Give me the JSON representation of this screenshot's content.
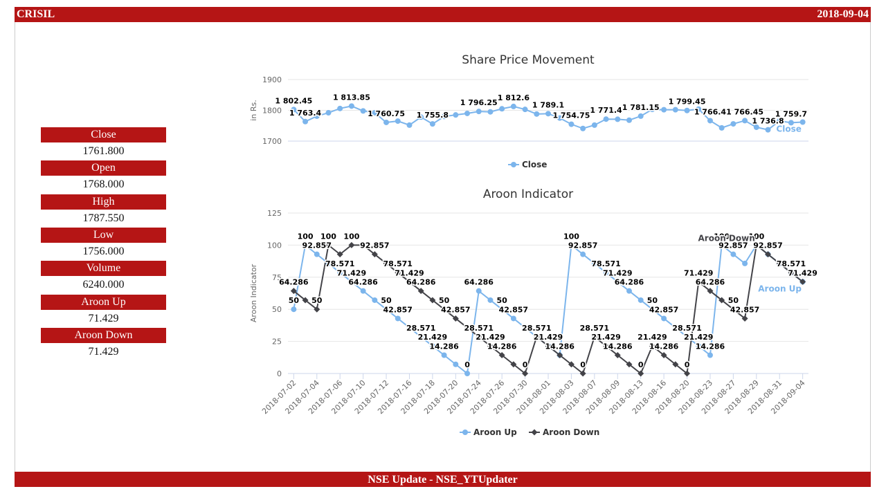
{
  "header": {
    "title": "CRISIL",
    "date": "2018-09-04"
  },
  "sidebar": {
    "items": [
      {
        "label": "Close",
        "value": "1761.800"
      },
      {
        "label": "Open",
        "value": "1768.000"
      },
      {
        "label": "High",
        "value": "1787.550"
      },
      {
        "label": "Low",
        "value": "1756.000"
      },
      {
        "label": "Volume",
        "value": "6240.000"
      },
      {
        "label": "Aroon Up",
        "value": "71.429"
      },
      {
        "label": "Aroon Down",
        "value": "71.429"
      }
    ]
  },
  "chart_data": [
    {
      "type": "line",
      "title": "Share Price Movement",
      "y_label": "in Rs.",
      "ylim": [
        1700,
        1900
      ],
      "yticks": [
        1700,
        1800,
        1900
      ],
      "grid": true,
      "categories": [
        null,
        null,
        null,
        null,
        null,
        null,
        null,
        null,
        null,
        null,
        null,
        null,
        null,
        null,
        null,
        null,
        null,
        null,
        null,
        null,
        null,
        null,
        null,
        null,
        null,
        null,
        null,
        null,
        null,
        null,
        null,
        null,
        null,
        null,
        null,
        null,
        null,
        null,
        null,
        null,
        null,
        null,
        null,
        null,
        null
      ],
      "series": [
        {
          "name": "Close",
          "color": "#7cb5ec",
          "marker": "circle",
          "values": [
            1802.45,
            1763.4,
            1781,
            1792,
            1806,
            1813.85,
            1798,
            1792,
            1760.75,
            1765,
            1752,
            1778,
            1755.8,
            1780,
            1785,
            1790,
            1796.25,
            1795,
            1805,
            1812.6,
            1803,
            1788,
            1789.1,
            1775,
            1754.75,
            1741,
            1752,
            1771.4,
            1771,
            1768,
            1781.15,
            1803,
            1802,
            1802,
            1799.45,
            1804,
            1766.4,
            1743,
            1756,
            1766.45,
            1745,
            1736.8,
            1766,
            1759.7,
            1761.8
          ],
          "value_labels": [
            "1 802.45",
            "1 763.4",
            null,
            null,
            null,
            "1 813.85",
            null,
            null,
            "1 760.75",
            null,
            null,
            null,
            "1 755.8",
            null,
            null,
            null,
            "1 796.25",
            null,
            null,
            "1 812.6",
            null,
            null,
            "1 789.1",
            null,
            "1 754.75",
            null,
            null,
            "1 771.4",
            null,
            null,
            "1 781.15",
            null,
            null,
            null,
            "1 799.45",
            null,
            "1 766.4",
            null,
            null,
            "1 766.45",
            null,
            "1 736.8",
            null,
            "1 759.7",
            null
          ]
        }
      ]
    },
    {
      "type": "line",
      "title": "Aroon Indicator",
      "y_label": "Aroon Indicator",
      "ylim": [
        0,
        125
      ],
      "yticks": [
        0,
        25,
        50,
        75,
        100,
        125
      ],
      "grid": true,
      "categories": [
        "2018-07-02",
        null,
        "2018-07-04",
        null,
        "2018-07-06",
        null,
        "2018-07-10",
        null,
        "2018-07-12",
        null,
        "2018-07-16",
        null,
        "2018-07-18",
        null,
        "2018-07-20",
        null,
        "2018-07-24",
        null,
        "2018-07-26",
        null,
        "2018-07-30",
        null,
        "2018-08-01",
        null,
        "2018-08-03",
        null,
        "2018-08-07",
        null,
        "2018-08-09",
        null,
        "2018-08-13",
        null,
        "2018-08-16",
        null,
        "2018-08-20",
        null,
        "2018-08-23",
        null,
        "2018-08-27",
        null,
        "2018-08-29",
        null,
        "2018-08-31",
        null,
        "2018-09-04"
      ],
      "series": [
        {
          "name": "Aroon Up",
          "color": "#7cb5ec",
          "marker": "circle",
          "values": [
            50,
            100,
            92.857,
            85.714,
            78.571,
            71.429,
            64.286,
            57.143,
            50,
            42.857,
            35.714,
            28.571,
            21.429,
            14.286,
            7.143,
            0,
            64.286,
            57.143,
            50,
            42.857,
            35.714,
            28.571,
            21.429,
            14.286,
            100,
            92.857,
            85.714,
            78.571,
            71.429,
            64.286,
            57.143,
            50,
            42.857,
            35.714,
            28.571,
            21.429,
            14.286,
            100,
            92.857,
            85.714,
            100,
            92.857,
            85.714,
            78.571,
            71.429
          ],
          "value_labels": [
            "50",
            "100",
            "92.857",
            null,
            "78.571",
            "71.429",
            "64.286",
            null,
            "50",
            "42.857",
            null,
            "28.571",
            "21.429",
            "14.286",
            null,
            "0",
            "64.286",
            null,
            "50",
            "42.857",
            null,
            "28.571",
            "21.429",
            "14.286",
            "100",
            "92.857",
            null,
            "78.571",
            "71.429",
            "64.286",
            null,
            "50",
            "42.857",
            null,
            "28.571",
            "21.429",
            "14.286",
            "100",
            "92.857",
            null,
            null,
            null,
            null,
            null,
            null
          ]
        },
        {
          "name": "Aroon Down",
          "color": "#434348",
          "marker": "diamond",
          "values": [
            64.286,
            57.143,
            50,
            100,
            92.857,
            100,
            100,
            92.857,
            85.714,
            78.571,
            71.429,
            64.286,
            57.143,
            50,
            42.857,
            35.714,
            28.571,
            21.429,
            14.286,
            7.143,
            0,
            28.571,
            21.429,
            14.286,
            7.143,
            0,
            28.571,
            21.429,
            14.286,
            7.143,
            0,
            21.429,
            14.286,
            7.143,
            0,
            71.429,
            64.286,
            57.143,
            50,
            42.857,
            100,
            92.857,
            85.714,
            78.571,
            71.429
          ],
          "value_labels": [
            "64.286",
            null,
            "50",
            "100",
            null,
            "100",
            null,
            "92.857",
            null,
            "78.571",
            "71.429",
            "64.286",
            null,
            "50",
            "42.857",
            null,
            "28.571",
            "21.429",
            "14.286",
            null,
            "0",
            null,
            null,
            null,
            null,
            "0",
            "28.571",
            "21.429",
            "14.286",
            null,
            "0",
            "21.429",
            "14.286",
            null,
            "0",
            "71.429",
            "64.286",
            null,
            "50",
            "42.857",
            "100",
            "92.857",
            null,
            "78.571",
            "71.429"
          ]
        }
      ]
    }
  ],
  "footer": {
    "text": "NSE Update - NSE_YTUpdater"
  }
}
